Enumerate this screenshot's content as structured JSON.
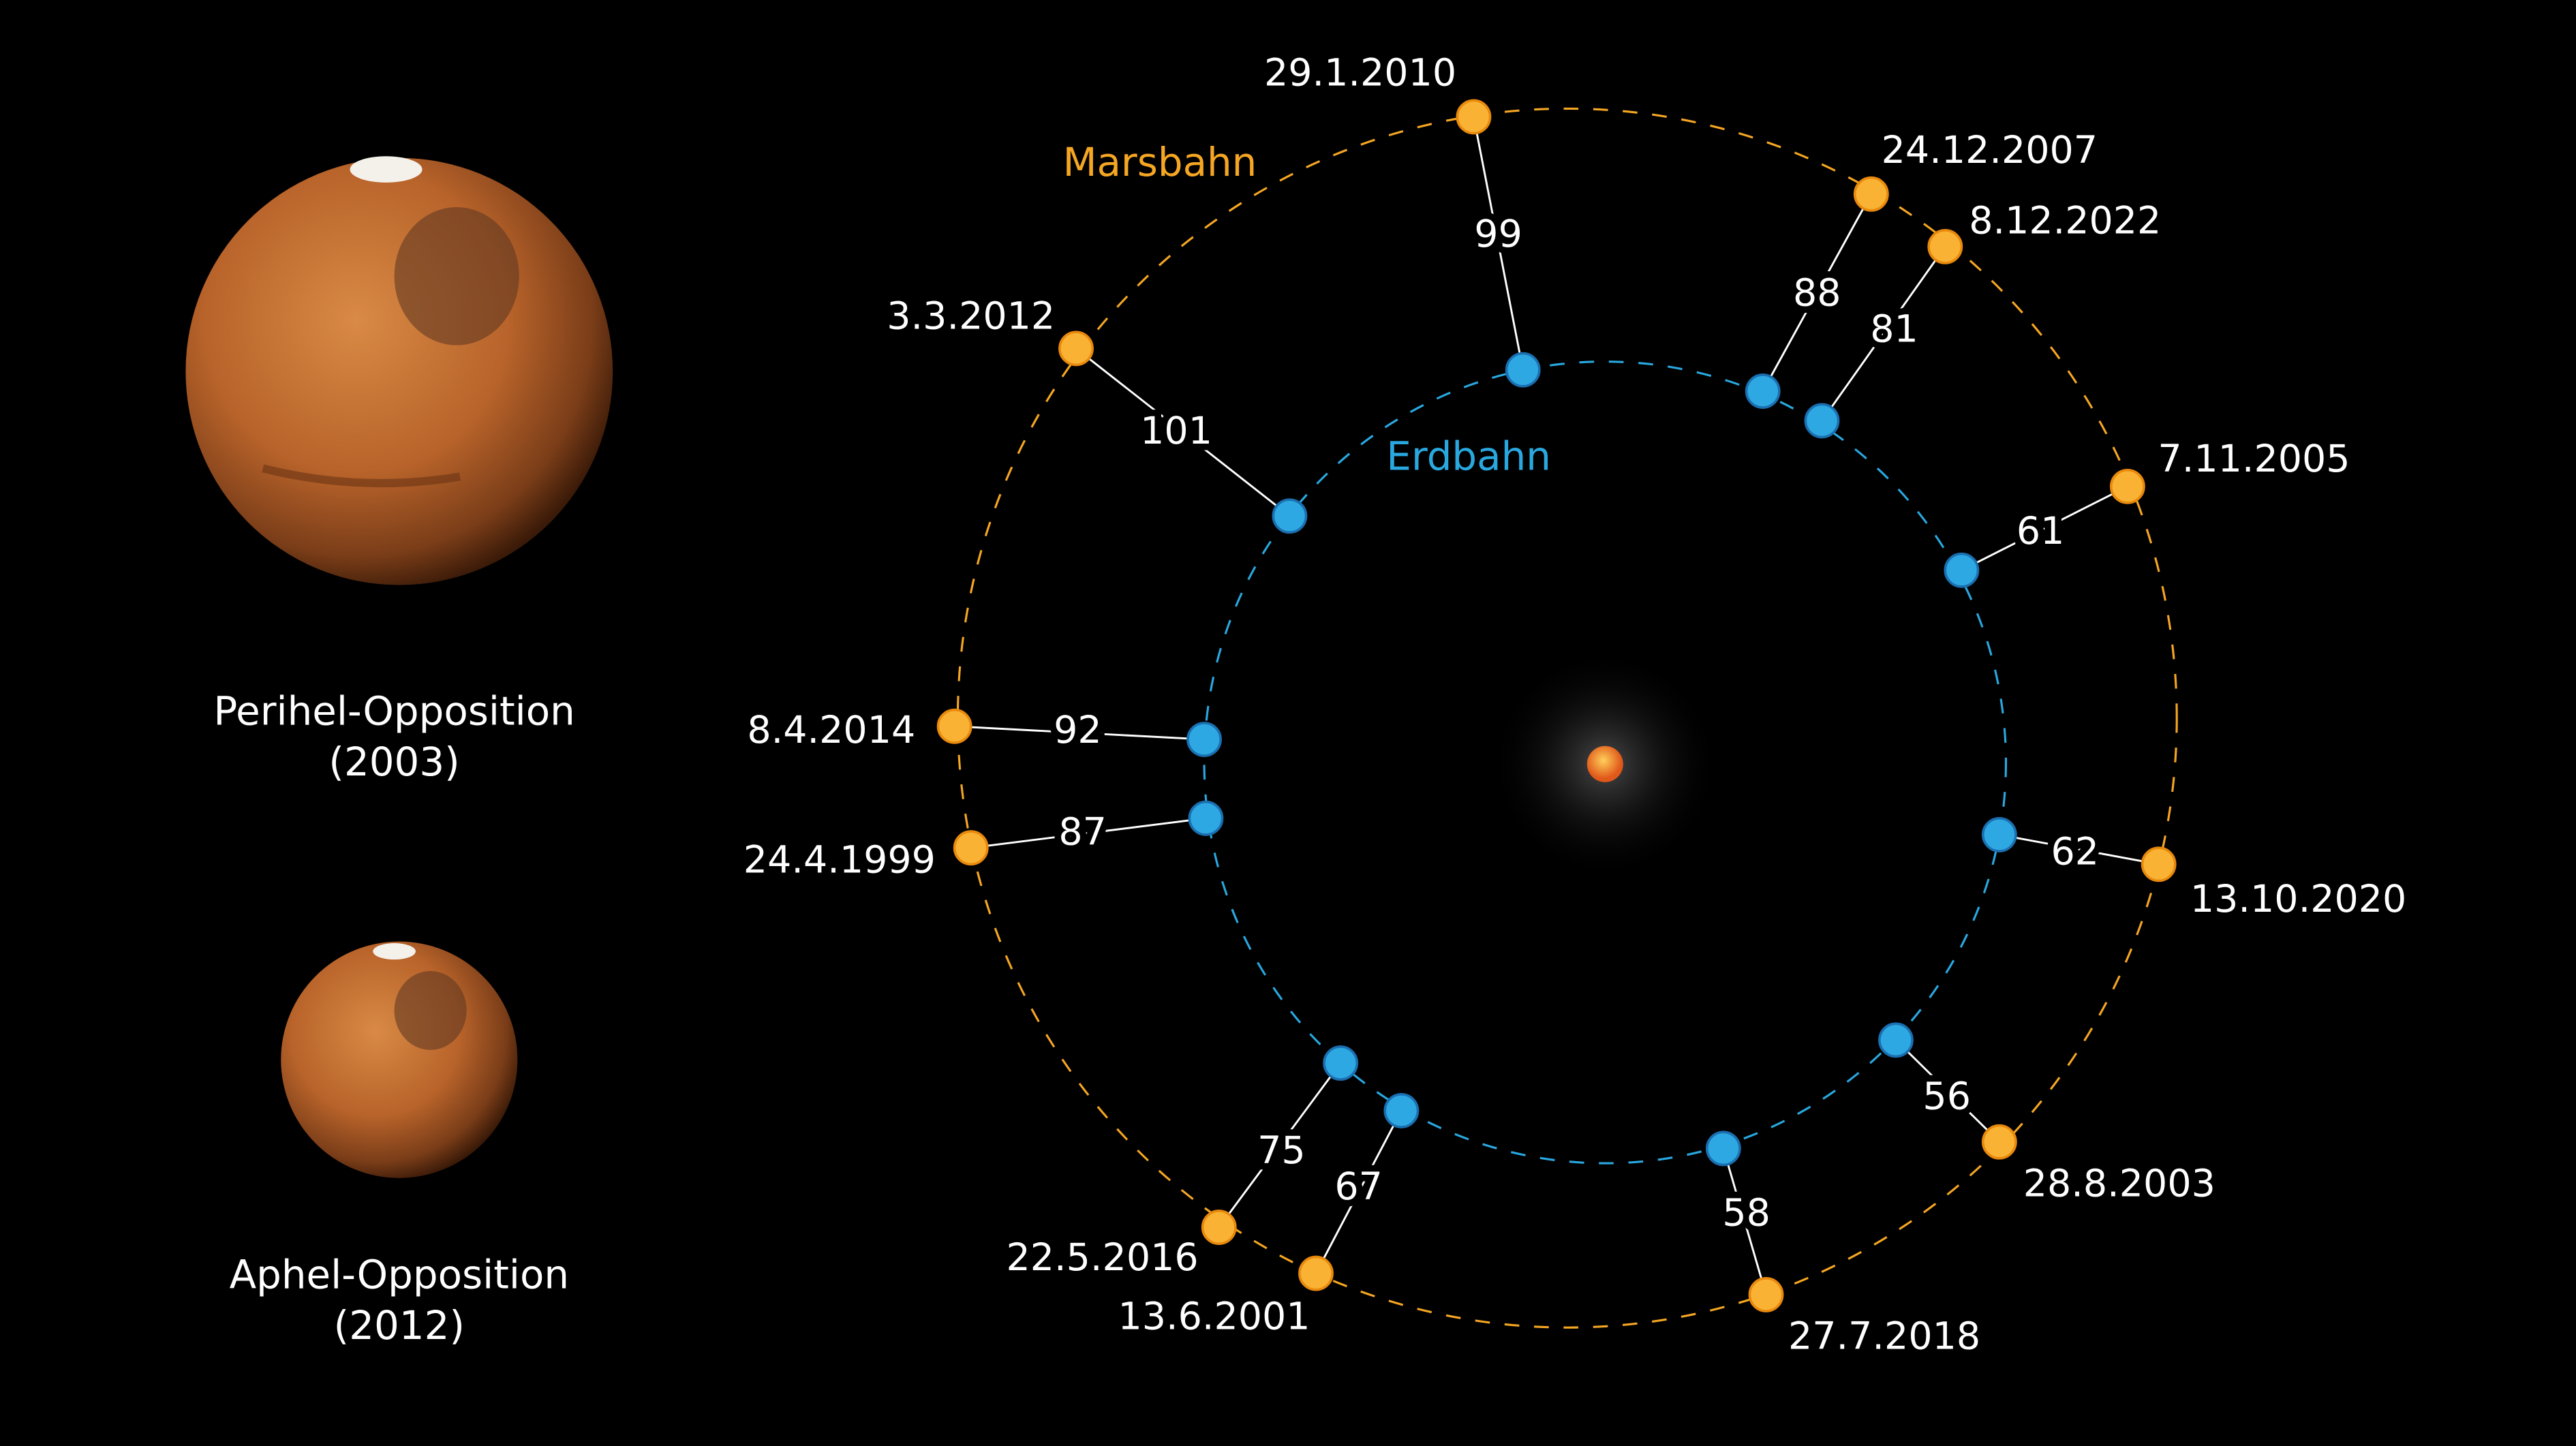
{
  "colors": {
    "mars_orbit": "#f5a623",
    "earth_orbit": "#29a8e0",
    "mars_point": "#f9b233",
    "earth_point": "#2ea8e2",
    "background": "#000000"
  },
  "labels": {
    "mars_orbit": "Marsbahn",
    "earth_orbit": "Erdbahn"
  },
  "planets": [
    {
      "caption_line1": "Perihel-Opposition",
      "caption_line2": "(2003)"
    },
    {
      "caption_line1": "Aphel-Opposition",
      "caption_line2": "(2012)"
    }
  ],
  "oppositions": [
    {
      "date": "29.1.2010",
      "distance": "99"
    },
    {
      "date": "24.12.2007",
      "distance": "88"
    },
    {
      "date": "8.12.2022",
      "distance": "81"
    },
    {
      "date": "7.11.2005",
      "distance": "61"
    },
    {
      "date": "13.10.2020",
      "distance": "62"
    },
    {
      "date": "28.8.2003",
      "distance": "56"
    },
    {
      "date": "27.7.2018",
      "distance": "58"
    },
    {
      "date": "13.6.2001",
      "distance": "67"
    },
    {
      "date": "22.5.2016",
      "distance": "75"
    },
    {
      "date": "24.4.1999",
      "distance": "87"
    },
    {
      "date": "8.4.2014",
      "distance": "92"
    },
    {
      "date": "3.3.2012",
      "distance": "101"
    }
  ]
}
